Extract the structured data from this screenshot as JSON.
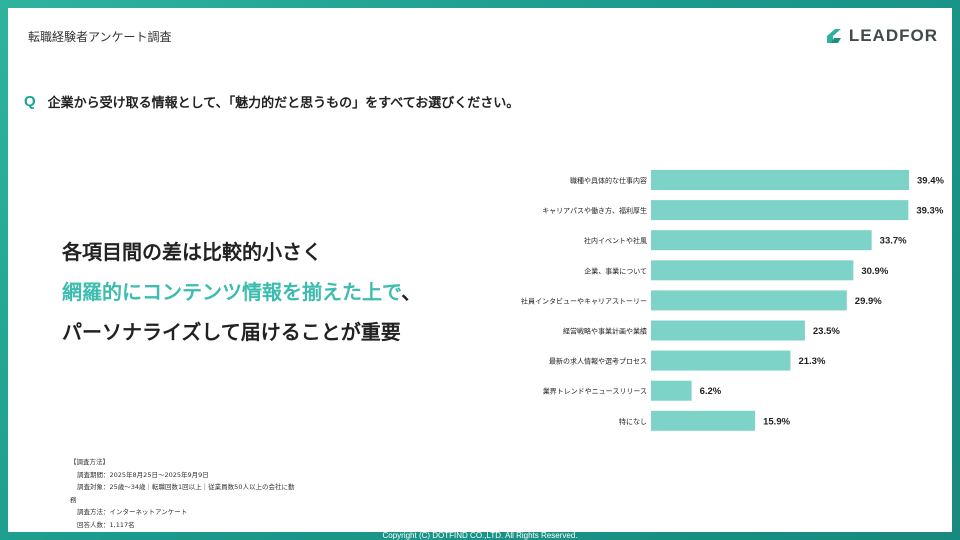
{
  "header": {
    "title": "転職経験者アンケート調査"
  },
  "logo": {
    "text": "LEADFOR"
  },
  "question": {
    "mark": "Q",
    "text": "企業から受け取る情報として、「魅力的だと思うもの」をすべてお選びください。"
  },
  "headline": {
    "line1": "各項目間の差は比較的小さく",
    "line2_accent": "網羅的にコンテンツ情報を揃えた上で",
    "line2_rest": "、",
    "line3": "パーソナライズして届けることが重要"
  },
  "method": {
    "heading": "【調査方法】",
    "period": "調査期間：2025年8月25日～2025年9月9日",
    "target_line1": "調査対象：25歳～34歳｜転職回数1回以上｜従業員数50人以上の会社に勤",
    "target_line2": "務",
    "method": "調査方法：インターネットアンケート",
    "respondents": "回答人数：1,117名"
  },
  "footer": {
    "copyright": "Copyright (C) DOTFIND CO.,LTD. All Rights Reserved."
  },
  "colors": {
    "bar": "#7dd3c8",
    "accent": "#3dbcb0",
    "brand": "#17a398"
  },
  "chart_data": {
    "type": "bar",
    "orientation": "horizontal",
    "categories": [
      "職種や具体的な仕事内容",
      "キャリアパスや働き方、福利厚生",
      "社内イベントや社風",
      "企業、事業について",
      "社員インタビューやキャリアストーリー",
      "経営戦略や事業計画や業績",
      "最新の求人情報や選考プロセス",
      "業界トレンドやニュースリリース",
      "特になし"
    ],
    "values": [
      39.4,
      39.3,
      33.7,
      30.9,
      29.9,
      23.5,
      21.3,
      6.2,
      15.9
    ],
    "value_labels": [
      "39.4%",
      "39.3%",
      "33.7%",
      "30.9%",
      "29.9%",
      "23.5%",
      "21.3%",
      "6.2%",
      "15.9%"
    ],
    "xlim": [
      0,
      39.4
    ],
    "grid": false,
    "legend": "none"
  }
}
